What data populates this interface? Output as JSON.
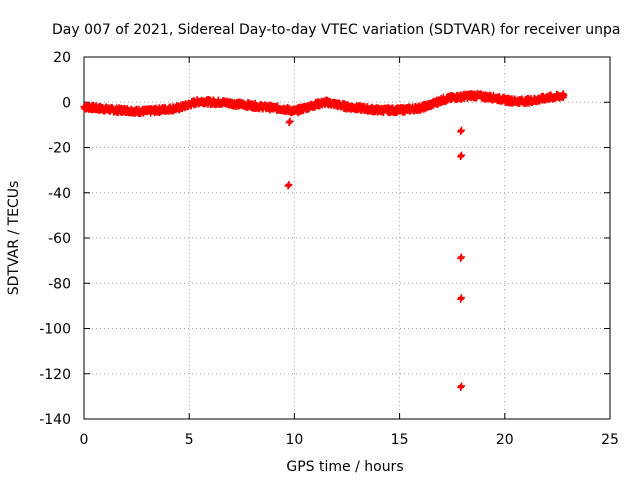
{
  "chart_data": {
    "type": "scatter",
    "title": "Day 007 of 2021, Sidereal Day-to-day VTEC variation (SDTVAR) for receiver unpa",
    "xlabel": "GPS time / hours",
    "ylabel": "SDTVAR / TECUs",
    "xlim": [
      0,
      25
    ],
    "ylim": [
      -140,
      20
    ],
    "xticks": [
      0,
      5,
      10,
      15,
      20,
      25
    ],
    "yticks": [
      20,
      0,
      -20,
      -40,
      -60,
      -80,
      -100,
      -120,
      -140
    ],
    "grid": true,
    "marker": "+",
    "color": "#ff0000",
    "series": [
      {
        "name": "SDTVAR",
        "trend": {
          "x": [
            0,
            0.5,
            1,
            1.5,
            2,
            2.5,
            3,
            3.5,
            4,
            4.5,
            5,
            5.3,
            5.6,
            6,
            6.5,
            7,
            7.5,
            8,
            8.5,
            9,
            9.5,
            10,
            10.5,
            11,
            11.5,
            12,
            12.5,
            13,
            13.5,
            14,
            14.5,
            15,
            15.5,
            16,
            16.5,
            17,
            17.5,
            18,
            18.5,
            19,
            19.5,
            20,
            20.5,
            21,
            21.5,
            22,
            22.5,
            22.8
          ],
          "y": [
            -2,
            -2.5,
            -3,
            -3.5,
            -3.5,
            -4,
            -4,
            -3.5,
            -3,
            -2.5,
            -1,
            0,
            0.5,
            0,
            0,
            -0.5,
            -1,
            -1.5,
            -2,
            -2.5,
            -3,
            -4,
            -2.5,
            -1,
            0,
            -1,
            -2,
            -2.5,
            -3,
            -3.5,
            -3.5,
            -3.5,
            -3,
            -2.5,
            -1,
            1,
            2,
            2.5,
            3,
            2.5,
            2,
            1,
            0.5,
            0.5,
            1,
            2,
            2.5,
            3
          ]
        },
        "outliers": {
          "x": [
            9.75,
            9.7,
            17.9,
            17.9,
            17.9,
            17.9,
            17.9
          ],
          "y": [
            -9,
            -37,
            -13,
            -24,
            -69,
            -87,
            -126
          ]
        }
      }
    ]
  }
}
